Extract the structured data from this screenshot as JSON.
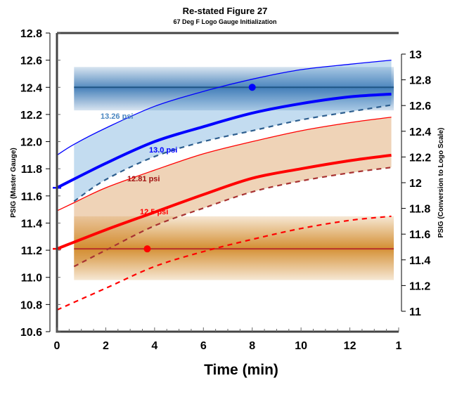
{
  "chart_data": {
    "type": "line",
    "title": "Re-stated Figure 27",
    "subtitle": "67 Deg F Logo Gauge Initialization",
    "xlabel": "Time (min)",
    "ylabel": "PSIG (Master Gauge)",
    "y2label": "PSIG (Conversion to Logo Scale)",
    "xlim": [
      0,
      14
    ],
    "ylim": [
      10.6,
      12.8
    ],
    "y2lim": [
      11,
      13
    ],
    "xticks": [
      "0",
      "2",
      "4",
      "6",
      "8",
      "10",
      "12",
      "1"
    ],
    "yticks": [
      "12.8",
      "12.6",
      "12.4",
      "12.2",
      "12.0",
      "11.8",
      "11.6",
      "11.4",
      "11.2",
      "11.0",
      "10.8",
      "10.6"
    ],
    "y2ticks": [
      "13",
      "12.8",
      "12.6",
      "12.4",
      "12.2",
      "12",
      "11.8",
      "11.6",
      "11.4",
      "11.2",
      "11"
    ],
    "grid": false,
    "series": [
      {
        "name": "13.26 psi",
        "style": "thin",
        "color": "#0000ff",
        "x": [
          0,
          0.7,
          2,
          4,
          6,
          8,
          10,
          12,
          13.7
        ],
        "y": [
          11.9,
          11.98,
          12.1,
          12.26,
          12.37,
          12.46,
          12.53,
          12.57,
          12.6
        ]
      },
      {
        "name": "13.0 psi",
        "style": "thick",
        "color": "#0000ff",
        "x": [
          0,
          2,
          4,
          6,
          8,
          10,
          12,
          13.7
        ],
        "y": [
          11.66,
          11.84,
          12.0,
          12.11,
          12.21,
          12.28,
          12.33,
          12.35
        ]
      },
      {
        "style": "dashed",
        "color": "#2e5f8f",
        "x": [
          0.7,
          2,
          4,
          6,
          8,
          10,
          12,
          13.7
        ],
        "y": [
          11.56,
          11.72,
          11.89,
          12.0,
          12.08,
          12.16,
          12.22,
          12.27
        ]
      },
      {
        "name": "12.81 psi",
        "style": "thin",
        "color": "#ff0000",
        "x": [
          0,
          0.7,
          2,
          4,
          6,
          8,
          10,
          12,
          13.7
        ],
        "y": [
          11.49,
          11.55,
          11.66,
          11.79,
          11.91,
          12.0,
          12.08,
          12.14,
          12.18
        ]
      },
      {
        "name": "12.5 psi",
        "style": "thick",
        "color": "#ff0000",
        "x": [
          0,
          2,
          4,
          6,
          8,
          10,
          12,
          13.7
        ],
        "y": [
          11.21,
          11.35,
          11.48,
          11.61,
          11.73,
          11.8,
          11.86,
          11.9
        ]
      },
      {
        "style": "dashed",
        "color": "#a83232",
        "x": [
          0.7,
          2,
          4,
          6,
          8,
          10,
          12,
          13.7
        ],
        "y": [
          11.08,
          11.2,
          11.38,
          11.51,
          11.63,
          11.71,
          11.77,
          11.81
        ]
      },
      {
        "style": "dashed",
        "color": "#ff0000",
        "x": [
          0,
          2,
          4,
          6,
          8,
          10,
          12,
          13.7
        ],
        "y": [
          10.76,
          10.92,
          11.08,
          11.19,
          11.28,
          11.36,
          11.42,
          11.45
        ]
      }
    ],
    "bands": [
      {
        "color": "#3a78b5",
        "x": [
          0.7,
          13.8
        ],
        "y": [
          12.23,
          12.55
        ],
        "center": 12.4,
        "marker_x": 8
      },
      {
        "color": "#d28a2a",
        "x": [
          0.7,
          13.8
        ],
        "y": [
          10.98,
          11.45
        ],
        "center": 11.21,
        "marker_x": 3.7
      }
    ],
    "fills": [
      {
        "between": [
          0,
          2
        ],
        "color": "#c3dcf0"
      },
      {
        "between": [
          3,
          5
        ],
        "color": "#efd3b7"
      }
    ],
    "start_markers": [
      {
        "x": 0,
        "y": 11.66,
        "color": "#0000ff"
      },
      {
        "x": 0,
        "y": 11.21,
        "color": "#ff0000"
      }
    ],
    "annotations": [
      {
        "text": "13.26 psi",
        "color": "#4a86c0"
      },
      {
        "text": "13.0 psi",
        "color": "#0000ff"
      },
      {
        "text": "12.81 psi",
        "color": "#a01010"
      },
      {
        "text": "12.5 psi",
        "color": "#ff0000"
      }
    ]
  }
}
